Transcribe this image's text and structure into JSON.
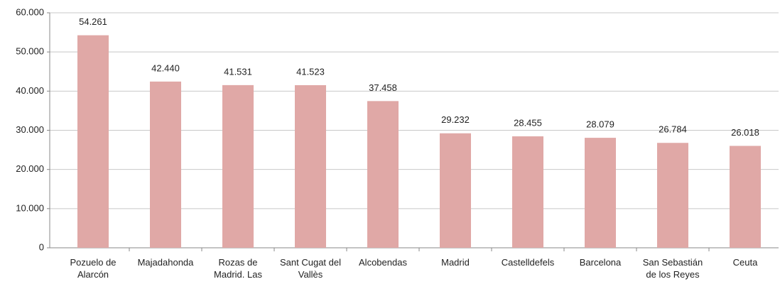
{
  "chart_data": {
    "type": "bar",
    "categories": [
      "Pozuelo de Alarcón",
      "Majadahonda",
      "Rozas de Madrid. Las",
      "Sant Cugat del Vallès",
      "Alcobendas",
      "Madrid",
      "Castelldefels",
      "Barcelona",
      "San Sebastián de los Reyes",
      "Ceuta"
    ],
    "values": [
      54261,
      42440,
      41531,
      41523,
      37458,
      29232,
      28455,
      28079,
      26784,
      26018
    ],
    "value_labels": [
      "54.261",
      "42.440",
      "41.531",
      "41.523",
      "37.458",
      "29.232",
      "28.455",
      "28.079",
      "26.784",
      "26.018"
    ],
    "color": "#e0a8a6",
    "ylim": [
      0,
      60000
    ],
    "yticks": [
      0,
      {
        "value": 10000,
        "label": "10.000"
      },
      {
        "value": 20000,
        "label": "20.000"
      },
      {
        "value": 30000,
        "label": "30.000"
      },
      {
        "value": 40000,
        "label": "40.000"
      },
      {
        "value": 50000,
        "label": "50.000"
      },
      {
        "value": 60000,
        "label": "60.000"
      }
    ],
    "grid": true
  }
}
